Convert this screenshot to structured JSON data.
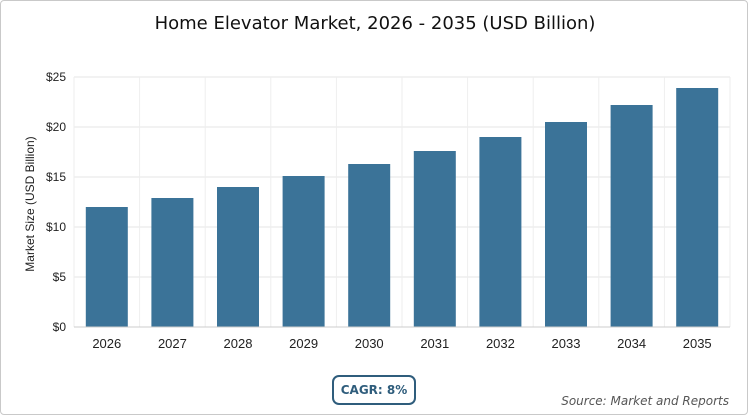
{
  "chart_data": {
    "type": "bar",
    "title": "Home Elevator Market, 2026 - 2035 (USD Billion)",
    "ylabel": "Market Size (USD Billion)",
    "xlabel": "",
    "categories": [
      "2026",
      "2027",
      "2028",
      "2029",
      "2030",
      "2031",
      "2032",
      "2033",
      "2034",
      "2035"
    ],
    "values": [
      12.0,
      12.9,
      14.0,
      15.1,
      16.3,
      17.6,
      19.0,
      20.5,
      22.2,
      23.9
    ],
    "ylim": [
      0,
      25
    ],
    "yticks": [
      "$0",
      "$5",
      "$10",
      "$15",
      "$20",
      "$25"
    ],
    "grid": true,
    "bar_color": "#3b7398"
  },
  "badge": {
    "cagr": "CAGR: 8%"
  },
  "footer": {
    "source": "Source: Market and Reports"
  }
}
